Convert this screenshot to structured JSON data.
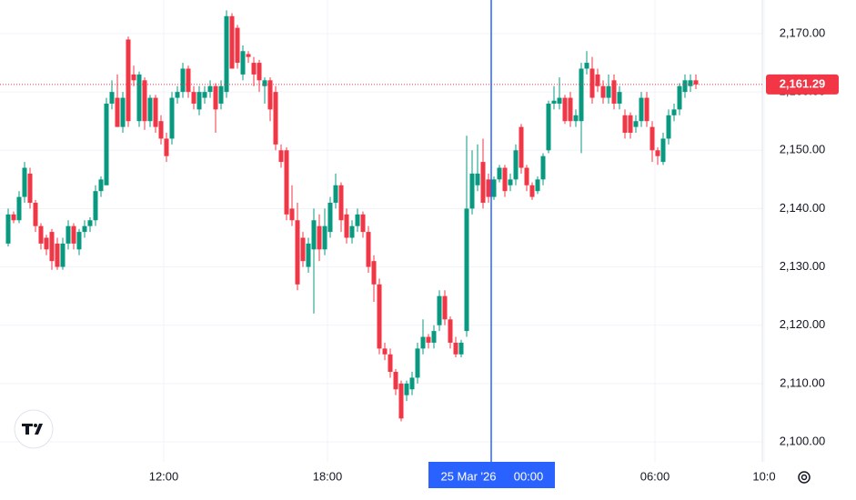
{
  "chart_data": {
    "type": "candlestick",
    "x": [
      6.3,
      6.5,
      6.7,
      6.9,
      7.1,
      7.3,
      7.5,
      7.7,
      7.9,
      8.1,
      8.3,
      8.5,
      8.7,
      8.9,
      9.1,
      9.3,
      9.5,
      9.7,
      9.9,
      10.1,
      10.3,
      10.5,
      10.7,
      10.9,
      11.1,
      11.3,
      11.5,
      11.7,
      11.9,
      12.1,
      12.3,
      12.5,
      12.7,
      12.9,
      13.1,
      13.3,
      13.5,
      13.7,
      13.9,
      14.1,
      14.3,
      14.5,
      14.7,
      14.9,
      15.1,
      15.3,
      15.5,
      15.7,
      15.9,
      16.1,
      16.3,
      16.5,
      16.7,
      16.9,
      17.1,
      17.3,
      17.5,
      17.7,
      17.9,
      18.1,
      18.3,
      18.5,
      18.7,
      18.9,
      19.1,
      19.3,
      19.5,
      19.7,
      19.9,
      20.1,
      20.3,
      20.5,
      20.7,
      20.9,
      21.1,
      21.3,
      21.5,
      21.7,
      21.9,
      22.1,
      22.3,
      22.5,
      22.7,
      22.9,
      23.1,
      23.3,
      23.5,
      23.7,
      23.9,
      24.1,
      24.3,
      24.5,
      24.7,
      24.9,
      25.1,
      25.3,
      25.5,
      25.7,
      25.9,
      26.1,
      26.3,
      26.5,
      26.7,
      26.9,
      27.1,
      27.3,
      27.5,
      27.7,
      27.9,
      28.1,
      28.3,
      28.5,
      28.7,
      28.9,
      29.1,
      29.3,
      29.5,
      29.7,
      29.9,
      30.1,
      30.3,
      30.5,
      30.7,
      30.9,
      31.1,
      31.3,
      31.5
    ],
    "candles": [
      {
        "o": 2134,
        "h": 2140,
        "l": 2133.5,
        "c": 2139
      },
      {
        "o": 2139,
        "h": 2139.5,
        "l": 2137.5,
        "c": 2138
      },
      {
        "o": 2138,
        "h": 2143,
        "l": 2137.5,
        "c": 2142
      },
      {
        "o": 2142,
        "h": 2148,
        "l": 2141,
        "c": 2147
      },
      {
        "o": 2146,
        "h": 2147,
        "l": 2140,
        "c": 2141
      },
      {
        "o": 2141,
        "h": 2141.5,
        "l": 2136,
        "c": 2137
      },
      {
        "o": 2137,
        "h": 2137.5,
        "l": 2133,
        "c": 2134
      },
      {
        "o": 2135,
        "h": 2135.5,
        "l": 2132,
        "c": 2133
      },
      {
        "o": 2136,
        "h": 2136.5,
        "l": 2129.5,
        "c": 2131
      },
      {
        "o": 2134,
        "h": 2135,
        "l": 2129.5,
        "c": 2130
      },
      {
        "o": 2130,
        "h": 2135,
        "l": 2129.5,
        "c": 2134
      },
      {
        "o": 2134,
        "h": 2138,
        "l": 2133,
        "c": 2137
      },
      {
        "o": 2137,
        "h": 2137.5,
        "l": 2133,
        "c": 2134
      },
      {
        "o": 2133,
        "h": 2136.5,
        "l": 2132,
        "c": 2136
      },
      {
        "o": 2136,
        "h": 2138,
        "l": 2135,
        "c": 2137
      },
      {
        "o": 2137,
        "h": 2138.5,
        "l": 2136,
        "c": 2138
      },
      {
        "o": 2138,
        "h": 2144,
        "l": 2137,
        "c": 2143
      },
      {
        "o": 2143,
        "h": 2145.5,
        "l": 2142,
        "c": 2145
      },
      {
        "o": 2144,
        "h": 2159,
        "l": 2144,
        "c": 2158
      },
      {
        "o": 2158,
        "h": 2162,
        "l": 2157,
        "c": 2160
      },
      {
        "o": 2159,
        "h": 2163,
        "l": 2154,
        "c": 2154
      },
      {
        "o": 2154,
        "h": 2160,
        "l": 2153,
        "c": 2159
      },
      {
        "o": 2169,
        "h": 2169.5,
        "l": 2154,
        "c": 2155
      },
      {
        "o": 2163,
        "h": 2164.5,
        "l": 2161,
        "c": 2162
      },
      {
        "o": 2155,
        "h": 2163.5,
        "l": 2154,
        "c": 2163
      },
      {
        "o": 2162,
        "h": 2162.5,
        "l": 2153.5,
        "c": 2155
      },
      {
        "o": 2155,
        "h": 2159.5,
        "l": 2154,
        "c": 2159
      },
      {
        "o": 2159,
        "h": 2159.5,
        "l": 2153,
        "c": 2154
      },
      {
        "o": 2155,
        "h": 2156,
        "l": 2151,
        "c": 2152
      },
      {
        "o": 2152,
        "h": 2153,
        "l": 2148,
        "c": 2149
      },
      {
        "o": 2152,
        "h": 2160,
        "l": 2151,
        "c": 2159
      },
      {
        "o": 2159,
        "h": 2161,
        "l": 2158,
        "c": 2160
      },
      {
        "o": 2160,
        "h": 2165,
        "l": 2159,
        "c": 2164
      },
      {
        "o": 2164,
        "h": 2164.5,
        "l": 2159,
        "c": 2160
      },
      {
        "o": 2160,
        "h": 2161,
        "l": 2157,
        "c": 2158
      },
      {
        "o": 2157,
        "h": 2161,
        "l": 2156,
        "c": 2160
      },
      {
        "o": 2159,
        "h": 2161,
        "l": 2158,
        "c": 2160
      },
      {
        "o": 2160,
        "h": 2162,
        "l": 2159,
        "c": 2161
      },
      {
        "o": 2161,
        "h": 2161.5,
        "l": 2153,
        "c": 2157
      },
      {
        "o": 2158,
        "h": 2162,
        "l": 2157,
        "c": 2161
      },
      {
        "o": 2160,
        "h": 2174,
        "l": 2159,
        "c": 2173
      },
      {
        "o": 2173,
        "h": 2173.5,
        "l": 2164,
        "c": 2164
      },
      {
        "o": 2171,
        "h": 2171.5,
        "l": 2164,
        "c": 2165
      },
      {
        "o": 2163,
        "h": 2168,
        "l": 2162,
        "c": 2167
      },
      {
        "o": 2166.5,
        "h": 2167,
        "l": 2165,
        "c": 2166
      },
      {
        "o": 2165,
        "h": 2166,
        "l": 2161,
        "c": 2163
      },
      {
        "o": 2165,
        "h": 2165.5,
        "l": 2160,
        "c": 2162
      },
      {
        "o": 2161,
        "h": 2162.5,
        "l": 2158,
        "c": 2162
      },
      {
        "o": 2162,
        "h": 2162.5,
        "l": 2155,
        "c": 2157
      },
      {
        "o": 2160,
        "h": 2161,
        "l": 2150,
        "c": 2151
      },
      {
        "o": 2150,
        "h": 2151,
        "l": 2147,
        "c": 2148
      },
      {
        "o": 2150,
        "h": 2150.5,
        "l": 2138,
        "c": 2139
      },
      {
        "o": 2140,
        "h": 2144,
        "l": 2137,
        "c": 2138
      },
      {
        "o": 2138,
        "h": 2141,
        "l": 2126,
        "c": 2127
      },
      {
        "o": 2135,
        "h": 2136,
        "l": 2130,
        "c": 2131
      },
      {
        "o": 2130,
        "h": 2135,
        "l": 2129,
        "c": 2134
      },
      {
        "o": 2133,
        "h": 2140,
        "l": 2122,
        "c": 2138
      },
      {
        "o": 2137,
        "h": 2139,
        "l": 2131,
        "c": 2133
      },
      {
        "o": 2133,
        "h": 2140,
        "l": 2132,
        "c": 2137
      },
      {
        "o": 2136,
        "h": 2142,
        "l": 2135,
        "c": 2141
      },
      {
        "o": 2141,
        "h": 2146,
        "l": 2140,
        "c": 2144
      },
      {
        "o": 2144,
        "h": 2144.5,
        "l": 2136,
        "c": 2138
      },
      {
        "o": 2139,
        "h": 2140,
        "l": 2134,
        "c": 2135
      },
      {
        "o": 2135,
        "h": 2138,
        "l": 2134,
        "c": 2137
      },
      {
        "o": 2137,
        "h": 2140,
        "l": 2136,
        "c": 2139
      },
      {
        "o": 2139,
        "h": 2139.5,
        "l": 2135,
        "c": 2136
      },
      {
        "o": 2136,
        "h": 2137,
        "l": 2129,
        "c": 2130
      },
      {
        "o": 2131,
        "h": 2132,
        "l": 2124,
        "c": 2127
      },
      {
        "o": 2127,
        "h": 2128,
        "l": 2115,
        "c": 2116
      },
      {
        "o": 2116,
        "h": 2117,
        "l": 2114,
        "c": 2115
      },
      {
        "o": 2115,
        "h": 2116,
        "l": 2111,
        "c": 2112
      },
      {
        "o": 2112,
        "h": 2112.5,
        "l": 2108,
        "c": 2109
      },
      {
        "o": 2110,
        "h": 2110.5,
        "l": 2103.5,
        "c": 2104
      },
      {
        "o": 2108,
        "h": 2110.5,
        "l": 2107,
        "c": 2110
      },
      {
        "o": 2109,
        "h": 2112,
        "l": 2108,
        "c": 2111
      },
      {
        "o": 2111,
        "h": 2117,
        "l": 2110,
        "c": 2116
      },
      {
        "o": 2116,
        "h": 2121,
        "l": 2115,
        "c": 2118
      },
      {
        "o": 2118,
        "h": 2118.5,
        "l": 2116,
        "c": 2117
      },
      {
        "o": 2117,
        "h": 2120,
        "l": 2116,
        "c": 2119
      },
      {
        "o": 2120,
        "h": 2126,
        "l": 2119,
        "c": 2125
      },
      {
        "o": 2125,
        "h": 2126,
        "l": 2120,
        "c": 2121
      },
      {
        "o": 2121,
        "h": 2121.5,
        "l": 2116,
        "c": 2117
      },
      {
        "o": 2117,
        "h": 2118,
        "l": 2114.5,
        "c": 2115
      },
      {
        "o": 2115,
        "h": 2117.5,
        "l": 2114.5,
        "c": 2117
      },
      {
        "o": 2119,
        "h": 2152.5,
        "l": 2118,
        "c": 2140
      },
      {
        "o": 2140,
        "h": 2150,
        "l": 2139,
        "c": 2146
      },
      {
        "o": 2144,
        "h": 2151,
        "l": 2143,
        "c": 2146
      },
      {
        "o": 2148,
        "h": 2152,
        "l": 2140,
        "c": 2141
      },
      {
        "o": 2145,
        "h": 2146,
        "l": 2141,
        "c": 2142
      },
      {
        "o": 2142,
        "h": 2145.5,
        "l": 2141.5,
        "c": 2145
      },
      {
        "o": 2145,
        "h": 2147.5,
        "l": 2144.5,
        "c": 2147
      },
      {
        "o": 2147,
        "h": 2147.5,
        "l": 2142,
        "c": 2143
      },
      {
        "o": 2144,
        "h": 2146,
        "l": 2143,
        "c": 2145
      },
      {
        "o": 2145,
        "h": 2151,
        "l": 2144,
        "c": 2150
      },
      {
        "o": 2154,
        "h": 2154.5,
        "l": 2146,
        "c": 2147
      },
      {
        "o": 2147,
        "h": 2147.5,
        "l": 2143,
        "c": 2144
      },
      {
        "o": 2144,
        "h": 2144.5,
        "l": 2141.5,
        "c": 2142
      },
      {
        "o": 2143,
        "h": 2145.5,
        "l": 2142.5,
        "c": 2145
      },
      {
        "o": 2145,
        "h": 2149.5,
        "l": 2144,
        "c": 2149
      },
      {
        "o": 2150,
        "h": 2158.5,
        "l": 2149.5,
        "c": 2158
      },
      {
        "o": 2158,
        "h": 2161,
        "l": 2157,
        "c": 2158.5
      },
      {
        "o": 2158,
        "h": 2162.5,
        "l": 2157,
        "c": 2159
      },
      {
        "o": 2159,
        "h": 2159.5,
        "l": 2154.5,
        "c": 2155
      },
      {
        "o": 2159,
        "h": 2160,
        "l": 2154,
        "c": 2155
      },
      {
        "o": 2155,
        "h": 2157,
        "l": 2154,
        "c": 2156
      },
      {
        "o": 2155,
        "h": 2165,
        "l": 2149.5,
        "c": 2164
      },
      {
        "o": 2164,
        "h": 2167,
        "l": 2163,
        "c": 2165
      },
      {
        "o": 2164,
        "h": 2166,
        "l": 2158,
        "c": 2159
      },
      {
        "o": 2163,
        "h": 2164,
        "l": 2160,
        "c": 2161
      },
      {
        "o": 2161,
        "h": 2162,
        "l": 2158,
        "c": 2159
      },
      {
        "o": 2159,
        "h": 2163,
        "l": 2158,
        "c": 2161
      },
      {
        "o": 2162,
        "h": 2163,
        "l": 2157,
        "c": 2158
      },
      {
        "o": 2158,
        "h": 2161,
        "l": 2157,
        "c": 2160
      },
      {
        "o": 2156,
        "h": 2157,
        "l": 2152,
        "c": 2153
      },
      {
        "o": 2156,
        "h": 2156.5,
        "l": 2152,
        "c": 2153
      },
      {
        "o": 2154,
        "h": 2156,
        "l": 2153,
        "c": 2155
      },
      {
        "o": 2155,
        "h": 2160,
        "l": 2154,
        "c": 2159
      },
      {
        "o": 2159,
        "h": 2160,
        "l": 2154,
        "c": 2155
      },
      {
        "o": 2154,
        "h": 2155,
        "l": 2148,
        "c": 2150
      },
      {
        "o": 2150,
        "h": 2150.5,
        "l": 2147.5,
        "c": 2149
      },
      {
        "o": 2148,
        "h": 2153,
        "l": 2147.5,
        "c": 2152
      },
      {
        "o": 2152,
        "h": 2157,
        "l": 2151,
        "c": 2156
      },
      {
        "o": 2156,
        "h": 2158,
        "l": 2155,
        "c": 2157
      },
      {
        "o": 2157,
        "h": 2161.5,
        "l": 2156,
        "c": 2161
      },
      {
        "o": 2160,
        "h": 2163,
        "l": 2159,
        "c": 2162
      },
      {
        "o": 2161,
        "h": 2163,
        "l": 2160,
        "c": 2162
      },
      {
        "o": 2162,
        "h": 2163,
        "l": 2160.5,
        "c": 2161.29
      }
    ],
    "up_color": "#089981",
    "down_color": "#f23645",
    "xlim": [
      6,
      34
    ],
    "xticks": [
      {
        "value": 12,
        "label": "12:00"
      },
      {
        "value": 18,
        "label": "18:00"
      },
      {
        "value": 30,
        "label": "06:00"
      },
      {
        "value": 34,
        "label": "10:0"
      }
    ],
    "ylim": [
      2096.57,
      2175.77
    ],
    "yticks": [
      {
        "value": 2100,
        "label": "2,100.00"
      },
      {
        "value": 2110,
        "label": "2,110.00"
      },
      {
        "value": 2120,
        "label": "2,120.00"
      },
      {
        "value": 2130,
        "label": "2,130.00"
      },
      {
        "value": 2140,
        "label": "2,140.00"
      },
      {
        "value": 2150,
        "label": "2,150.00"
      },
      {
        "value": 2160,
        "label": "2,160.00"
      },
      {
        "value": 2170,
        "label": "2,170.00"
      }
    ],
    "grid": true,
    "crosshair": {
      "x": 24,
      "date": "25 Mar '26",
      "time": "00:00",
      "color": "#2962ff"
    },
    "last_price": {
      "value": 2161.29,
      "label": "2,161.29",
      "color": "#f23645"
    }
  }
}
